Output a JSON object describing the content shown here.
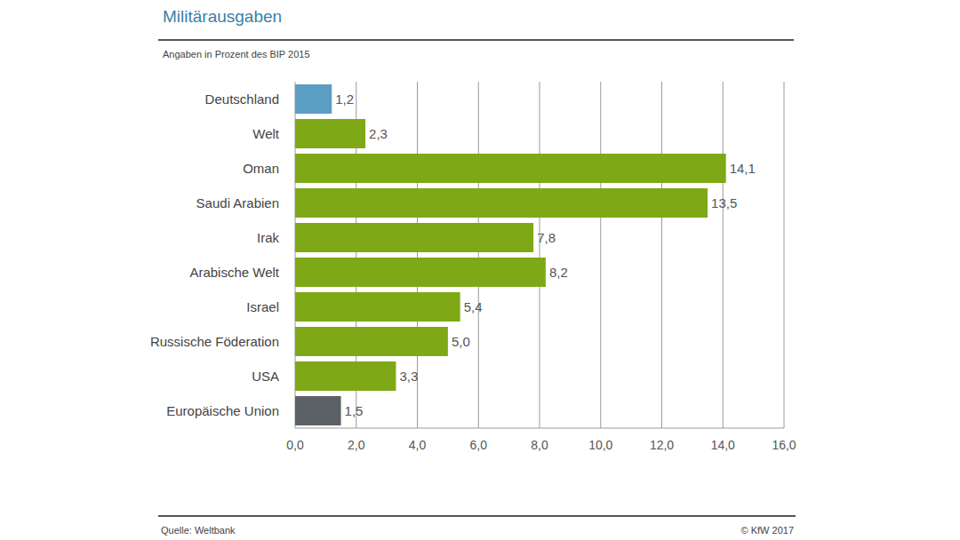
{
  "chart_data": {
    "type": "bar",
    "title": "Militärausgaben",
    "subtitle": "Angaben in Prozent des BIP 2015",
    "source": "Quelle: Weltbank",
    "copyright": "© KfW 2017",
    "orientation": "horizontal",
    "categories": [
      "Deutschland",
      "Welt",
      "Oman",
      "Saudi Arabien",
      "Irak",
      "Arabische Welt",
      "Israel",
      "Russische Föderation",
      "USA",
      "Europäische Union"
    ],
    "values": [
      1.2,
      2.3,
      14.1,
      13.5,
      7.8,
      8.2,
      5.4,
      5.0,
      3.3,
      1.5
    ],
    "value_labels": [
      "1,2",
      "2,3",
      "14,1",
      "13,5",
      "7,8",
      "8,2",
      "5,4",
      "5,0",
      "3,3",
      "1,5"
    ],
    "colors": [
      "#5b9ec4",
      "#7ea816",
      "#7ea816",
      "#7ea816",
      "#7ea816",
      "#7ea816",
      "#7ea816",
      "#7ea816",
      "#7ea816",
      "#5b6167"
    ],
    "data_labels": true,
    "grid": true,
    "xlim": [
      0,
      16
    ],
    "xticks": [
      {
        "value": 0,
        "label": "0,0"
      },
      {
        "value": 2,
        "label": "2,0"
      },
      {
        "value": 4,
        "label": "4,0"
      },
      {
        "value": 6,
        "label": "6,0"
      },
      {
        "value": 8,
        "label": "8,0"
      },
      {
        "value": 10,
        "label": "10,0"
      },
      {
        "value": 12,
        "label": "12,0"
      },
      {
        "value": 14,
        "label": "14,0"
      },
      {
        "value": 16,
        "label": "16,0"
      }
    ]
  }
}
